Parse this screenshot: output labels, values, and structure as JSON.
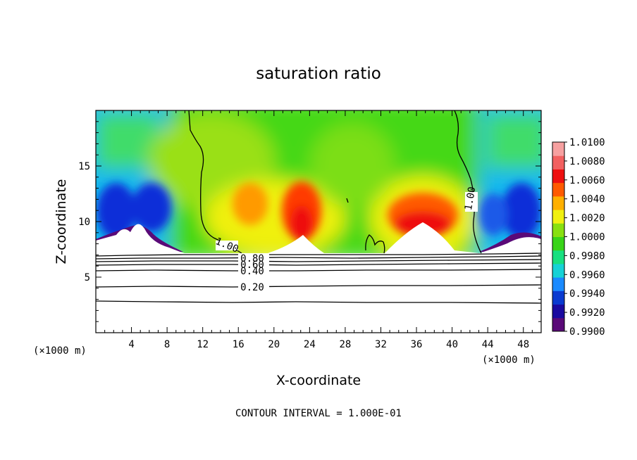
{
  "chart_data": {
    "type": "heatmap",
    "title": "saturation ratio",
    "xlabel": "X-coordinate",
    "ylabel": "Z-coordinate",
    "x_unit_left": "(×1000 m)",
    "x_unit_right": "(×1000 m)",
    "xlim": [
      0,
      50
    ],
    "ylim": [
      0,
      20
    ],
    "x_ticks": [
      4,
      8,
      12,
      16,
      20,
      24,
      28,
      32,
      36,
      40,
      44,
      48
    ],
    "y_ticks": [
      5,
      10,
      15
    ],
    "footer": "CONTOUR INTERVAL = 1.000E-01",
    "colorbar": {
      "min": 0.99,
      "max": 1.01,
      "labels": [
        "1.0100",
        "1.0080",
        "1.0060",
        "1.0040",
        "1.0020",
        "1.0000",
        "0.9980",
        "0.9960",
        "0.9940",
        "0.9920",
        "0.9900"
      ],
      "colors": [
        "#5a0a78",
        "#1a0aa0",
        "#0a3ad0",
        "#1a8aff",
        "#16d2d6",
        "#18e080",
        "#38d418",
        "#88e010",
        "#f0f010",
        "#ffb000",
        "#ff5a00",
        "#ee1010",
        "#f26060",
        "#f6a0a0"
      ]
    },
    "contour_labels": [
      {
        "text": "1.00",
        "x": 14.6,
        "y": 7.8
      },
      {
        "text": "1.00",
        "x": 42.5,
        "y": 11.6
      },
      {
        "text": "0.80",
        "x": 17.6,
        "y": 6.5
      },
      {
        "text": "0.60",
        "x": 17.6,
        "y": 5.8
      },
      {
        "text": "0.40",
        "x": 17.6,
        "y": 5.2
      },
      {
        "text": "0.20",
        "x": 17.6,
        "y": 3.9
      }
    ],
    "ground_level_z": 7.1
  }
}
